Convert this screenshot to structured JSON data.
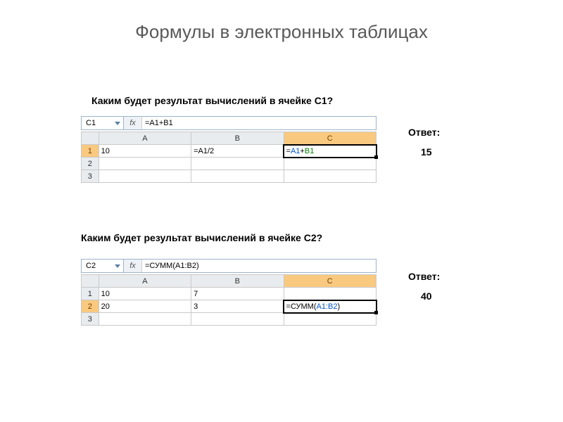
{
  "title": "Формулы в электронных таблицах",
  "q1": {
    "question": "Каким будет результат вычислений в ячейке С1?",
    "answer_label": "Ответ:",
    "answer_value": "15",
    "namebox": "C1",
    "fx_label": "fx",
    "formula": "=A1+B1",
    "columns": [
      "A",
      "B",
      "C"
    ],
    "rows": [
      "1",
      "2",
      "3"
    ],
    "cells": {
      "A1": "10",
      "B1": "=A1/2",
      "C1_eq": "=",
      "C1_a": "A1",
      "C1_plus": "+",
      "C1_b": "B1"
    },
    "selected_row": "1",
    "colors": {
      "header_sel_bg": "#f9c97f",
      "ref1": "#0054cc",
      "ref2": "#008000"
    }
  },
  "q2": {
    "question": "Каким будет результат вычислений в ячейке С2?",
    "answer_label": "Ответ:",
    "answer_value": "40",
    "namebox": "C2",
    "fx_label": "fx",
    "formula": "=СУММ(A1:B2)",
    "columns": [
      "A",
      "B",
      "C"
    ],
    "rows": [
      "1",
      "2",
      "3"
    ],
    "cells": {
      "A1": "10",
      "B1": "7",
      "A2": "20",
      "B2": "3",
      "C2_pre": "=СУММ(",
      "C2_ref": "A1:B2",
      "C2_post": ")"
    },
    "selected_row": "2",
    "colors": {
      "header_sel_bg": "#f9c97f",
      "ref": "#0054cc",
      "func": "#9c3b2e"
    }
  }
}
